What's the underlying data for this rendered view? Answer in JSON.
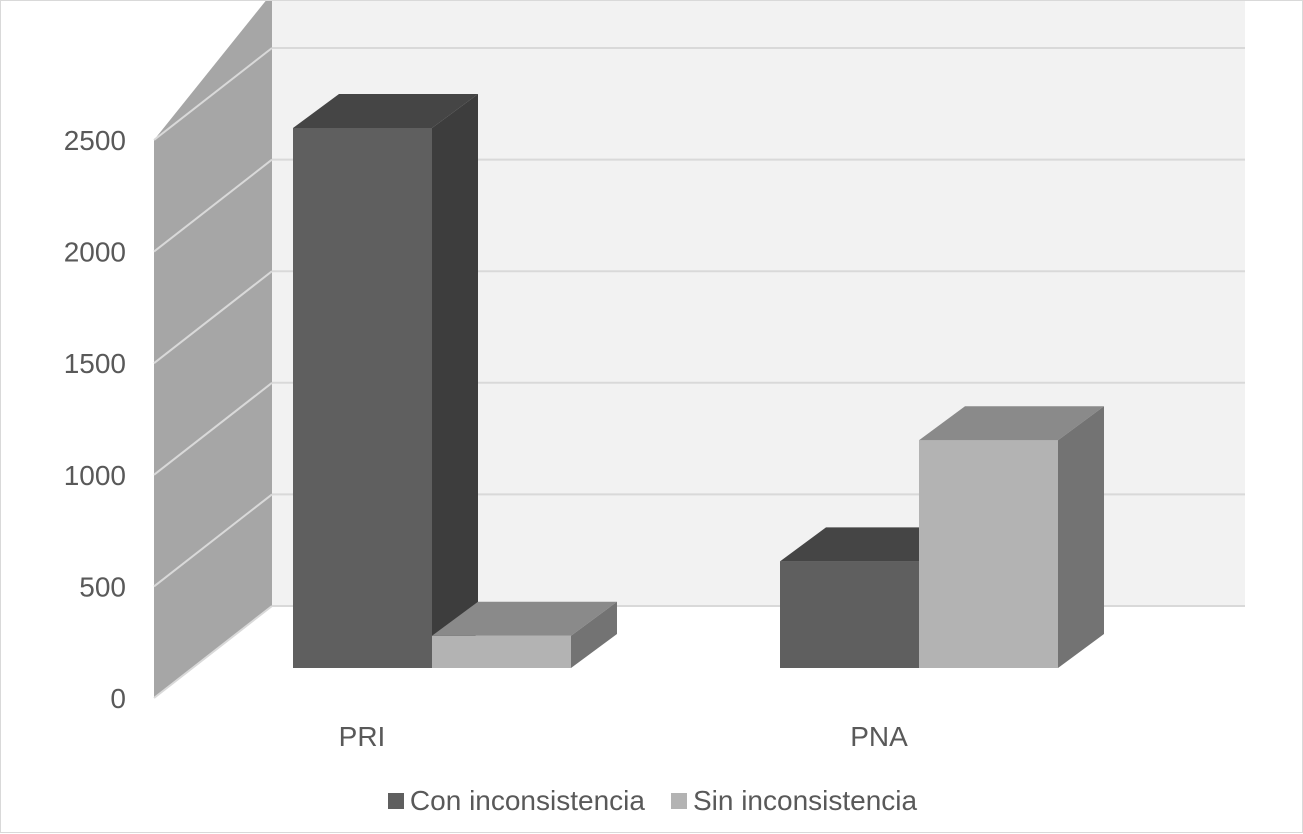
{
  "chart_data": {
    "type": "bar",
    "style": "3d-clustered-column",
    "categories": [
      "PRI",
      "PNA"
    ],
    "series": [
      {
        "name": "Con inconsistencia",
        "values": [
          2430,
          480
        ],
        "color": "#5f5f5f"
      },
      {
        "name": "Sin inconsistencia",
        "values": [
          145,
          1025
        ],
        "color": "#b3b3b3"
      }
    ],
    "y_ticks": [
      "0",
      "500",
      "1000",
      "1500",
      "2000",
      "2500"
    ],
    "ylim": [
      0,
      2500
    ],
    "grid": true,
    "legend_position": "bottom",
    "title": "",
    "xlabel": "",
    "ylabel": ""
  }
}
